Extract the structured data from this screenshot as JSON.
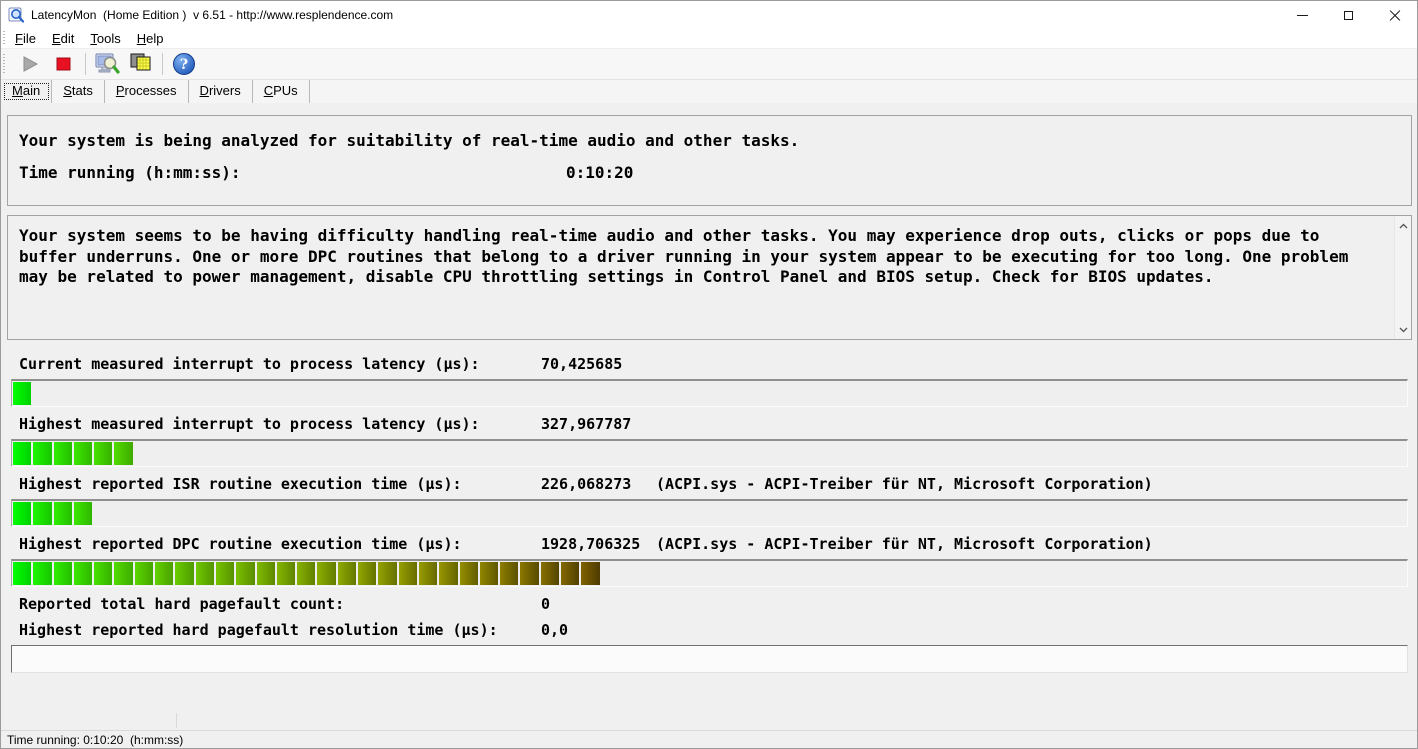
{
  "window": {
    "title": "LatencyMon  (Home Edition )  v 6.51 - http://www.resplendence.com",
    "app_icon": "latencymon-magnifier-icon",
    "control_icons": [
      "minimize-icon",
      "maximize-icon",
      "close-icon"
    ]
  },
  "menu": {
    "items": [
      "File",
      "Edit",
      "Tools",
      "Help"
    ]
  },
  "toolbar": {
    "items": [
      "play",
      "stop",
      "separator",
      "analyze",
      "copy-report",
      "separator",
      "help"
    ],
    "icon_names": [
      "play-icon (disabled)",
      "stop-icon",
      "analyze-computer-magnifier-icon",
      "copy-report-icon",
      "help-icon"
    ]
  },
  "tabs": [
    {
      "label": "Main",
      "selected": true
    },
    {
      "label": "Stats",
      "selected": false
    },
    {
      "label": "Processes",
      "selected": false
    },
    {
      "label": "Drivers",
      "selected": false
    },
    {
      "label": "CPUs",
      "selected": false
    }
  ],
  "analysis_panel": {
    "status_line": "Your system is being analyzed for suitability of real-time audio and other tasks.",
    "time_label": "Time running (h:mm:ss):",
    "time_value": "0:10:20"
  },
  "advice_panel": {
    "lines": [
      "Your system seems to be having difficulty handling real-time audio and other tasks. You may experience drop outs, clicks or pops due to",
      "buffer underruns. One or more DPC routines that belong to a driver running in your system appear to be executing for too long. One problem",
      "may be related to power management, disable CPU throttling settings in Control Panel and BIOS setup. Check for BIOS updates."
    ]
  },
  "metrics": [
    {
      "label": "Current measured interrupt to process latency (µs):",
      "value": "70,425685",
      "driver": "",
      "bar_segments": 1
    },
    {
      "label": "Highest measured interrupt to process latency (µs):",
      "value": "327,967787",
      "driver": "",
      "bar_segments": 6
    },
    {
      "label": "Highest reported ISR routine execution time (µs):",
      "value": "226,068273",
      "driver": "(ACPI.sys - ACPI-Treiber für NT, Microsoft Corporation)",
      "bar_segments": 4
    },
    {
      "label": "Highest reported DPC routine execution time (µs):",
      "value": "1928,706325",
      "driver": "(ACPI.sys - ACPI-Treiber für NT, Microsoft Corporation)",
      "bar_segments": 29
    },
    {
      "label": "Reported total hard pagefault count:",
      "value": "0",
      "driver": "",
      "bar_segments": null
    },
    {
      "label": "Highest reported hard pagefault resolution time (µs):",
      "value": "0,0",
      "driver": "",
      "bar_segments": 0
    }
  ],
  "bar_style": {
    "scale_max_segments": 30,
    "green_start": "#00f200",
    "brown_end": "#6f5200",
    "stop_color": "#e81123",
    "help_blue": "#2f6fd6"
  },
  "statusbar": {
    "text": "Time running: 0:10:20  (h:mm:ss)"
  }
}
